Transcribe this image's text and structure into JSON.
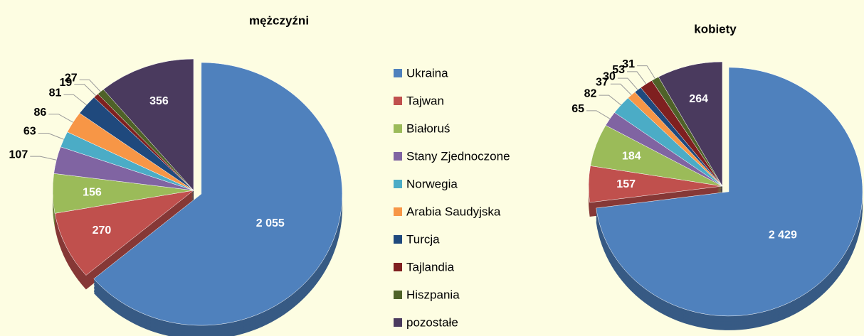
{
  "chart_data": [
    {
      "type": "pie",
      "title": "mężczyźni",
      "categories": [
        "Ukraina",
        "Tajwan",
        "Białoruś",
        "Stany Zjednoczone",
        "Norwegia",
        "Arabia Saudyjska",
        "Turcja",
        "Tajlandia",
        "Hiszpania",
        "pozostałe"
      ],
      "values": [
        2055,
        270,
        156,
        107,
        63,
        86,
        81,
        19,
        27,
        356
      ],
      "value_labels": [
        "2 055",
        "270",
        "156",
        "107",
        "63",
        "86",
        "81",
        "19",
        "27",
        "356"
      ],
      "colors": [
        "#4f81bd",
        "#c0504d",
        "#9bbb59",
        "#8064a2",
        "#4bacc6",
        "#f79646",
        "#1f497d",
        "#7f2020",
        "#4f6228",
        "#4a3a5e"
      ]
    },
    {
      "type": "pie",
      "title": "kobiety",
      "categories": [
        "Ukraina",
        "Tajwan",
        "Białoruś",
        "Stany Zjednoczone",
        "Norwegia",
        "Arabia Saudyjska",
        "Turcja",
        "Tajlandia",
        "Hiszpania",
        "pozostałe"
      ],
      "values": [
        2429,
        157,
        184,
        65,
        82,
        37,
        30,
        53,
        31,
        264
      ],
      "value_labels": [
        "2 429",
        "157",
        "184",
        "65",
        "82",
        "37",
        "30",
        "53",
        "31",
        "264"
      ],
      "colors": [
        "#4f81bd",
        "#c0504d",
        "#9bbb59",
        "#8064a2",
        "#4bacc6",
        "#f79646",
        "#1f497d",
        "#7f2020",
        "#4f6228",
        "#4a3a5e"
      ]
    }
  ]
}
